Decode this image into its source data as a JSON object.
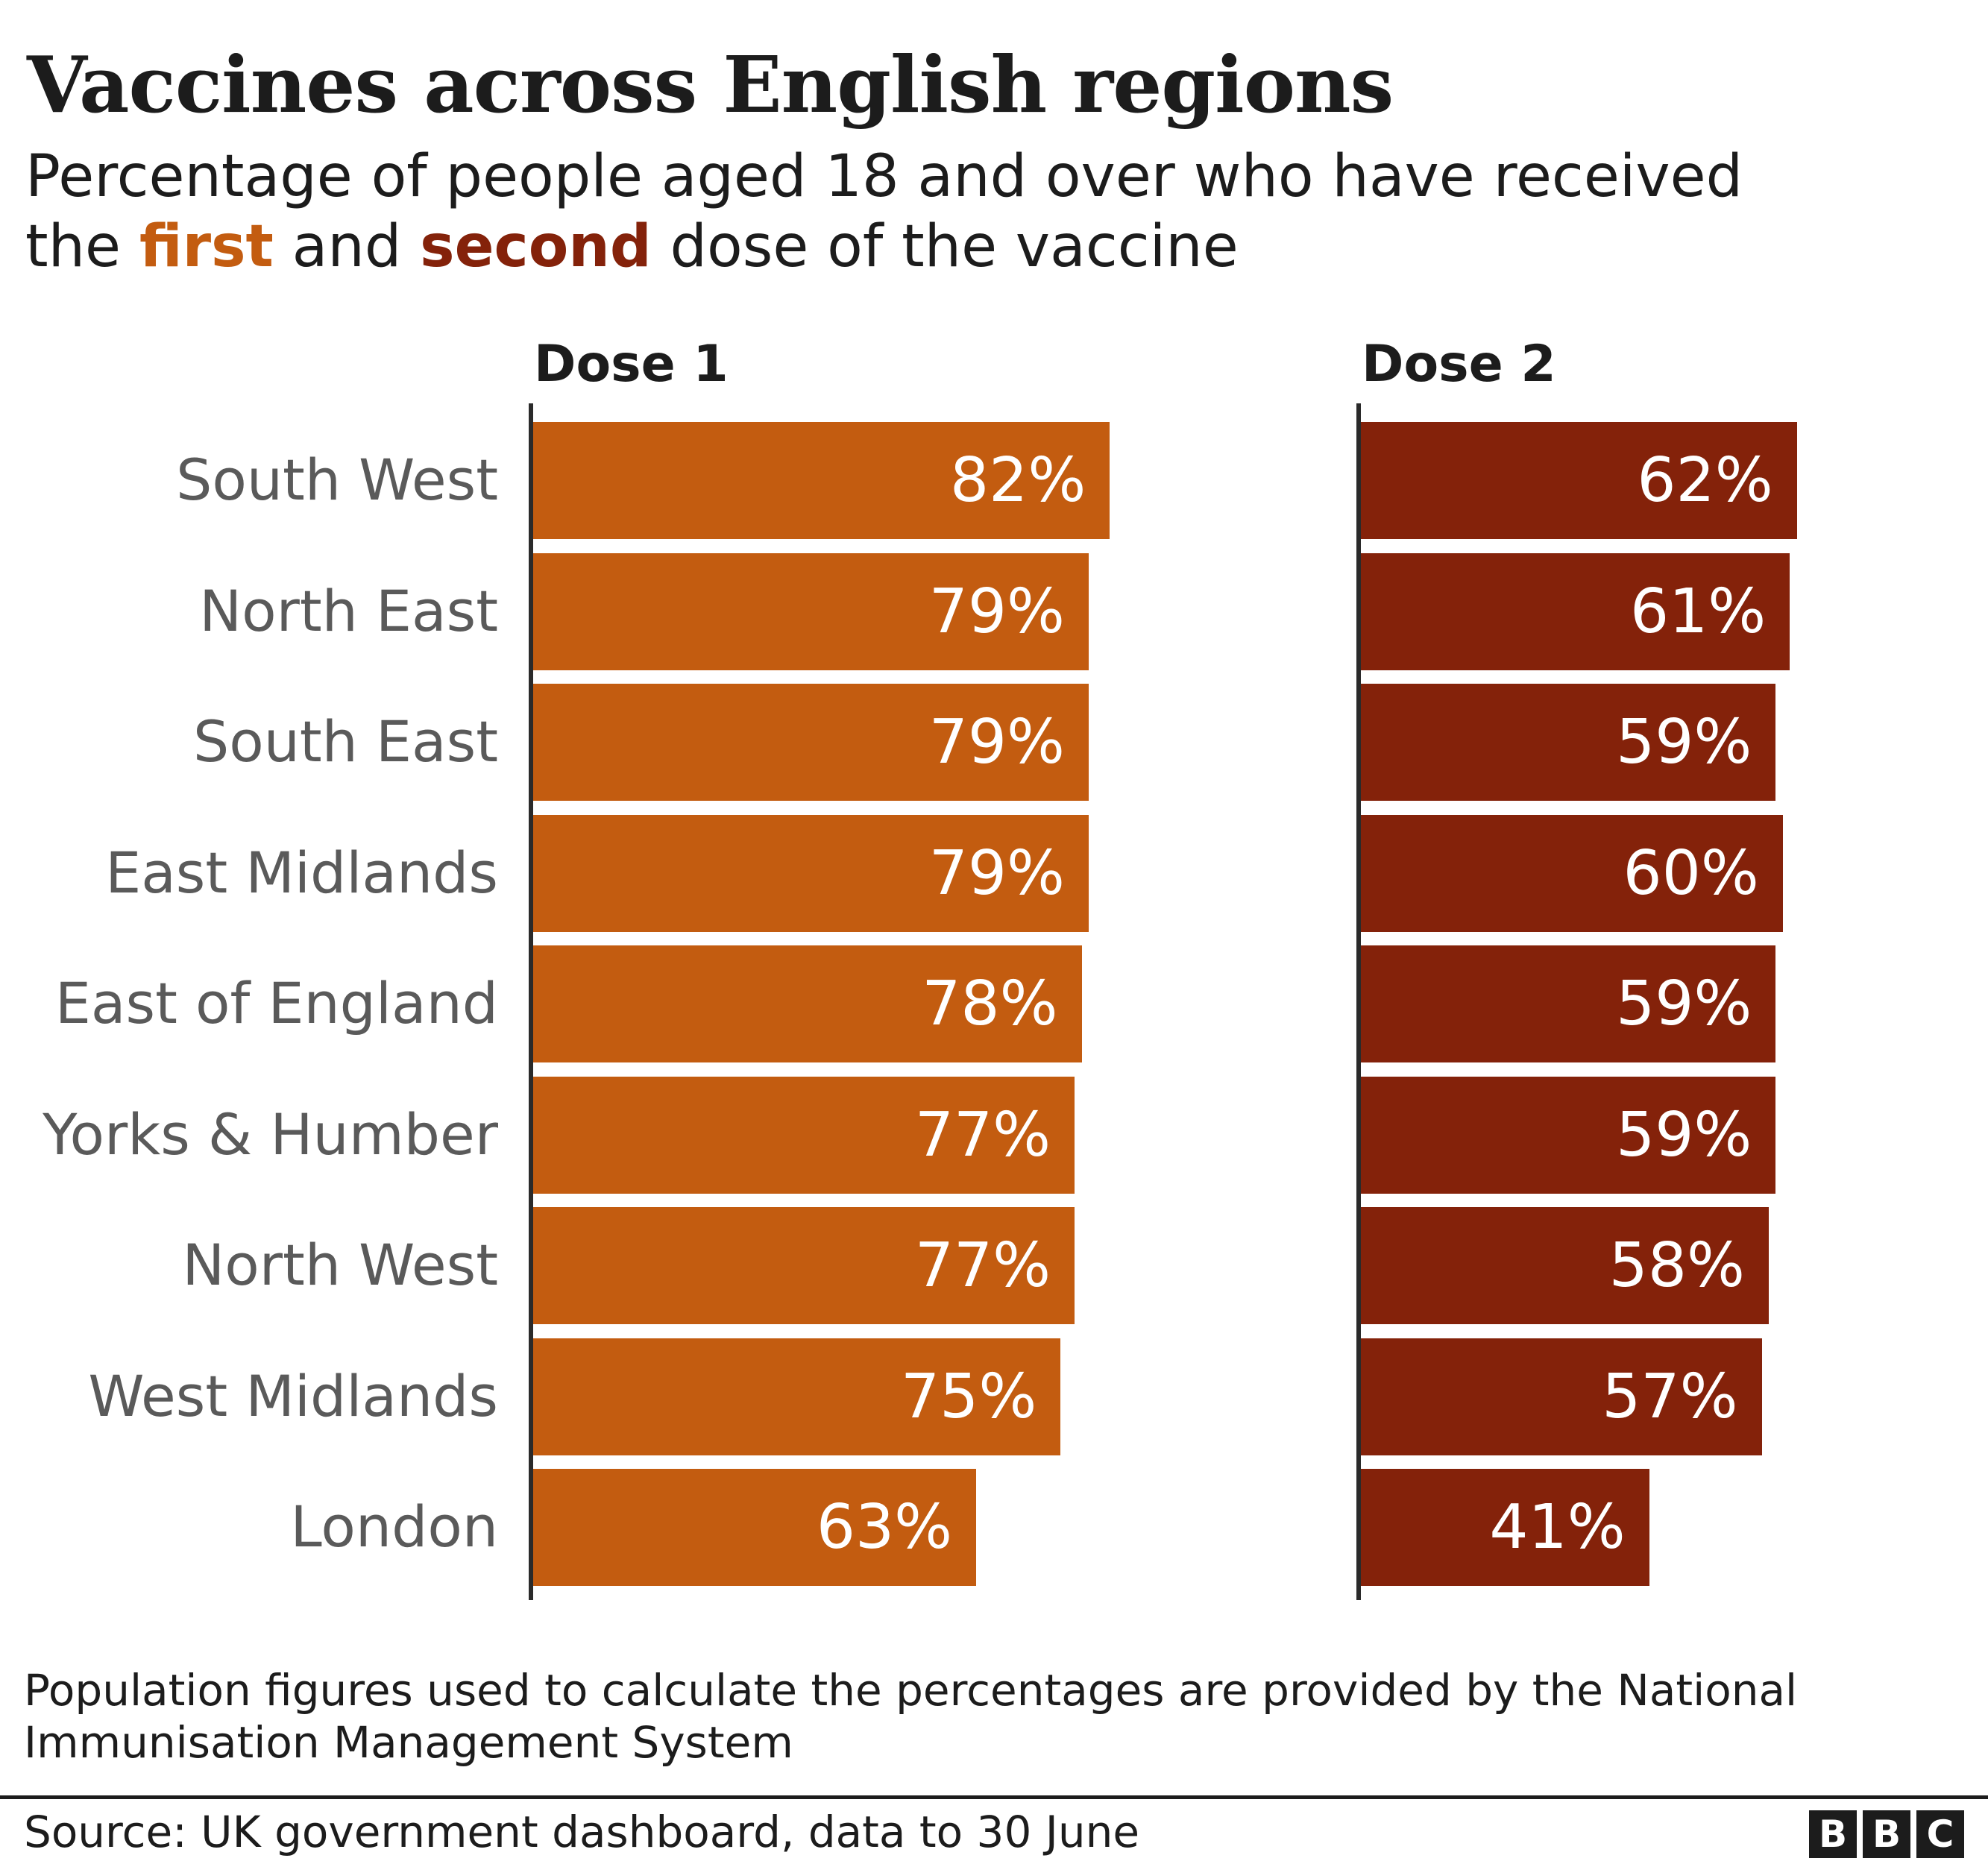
{
  "header": {
    "title": "Vaccines across English regions",
    "subtitle_line1": "Percentage of people aged 18 and over who have received",
    "subtitle_line2_prefix": "the ",
    "subtitle_first": "first",
    "subtitle_mid": " and ",
    "subtitle_second": "second",
    "subtitle_suffix": " dose of the vaccine"
  },
  "colors": {
    "dose1": "#c35c10",
    "dose2": "#84220a",
    "label": "#5a5a5a",
    "text": "#1c1c1c"
  },
  "panels": {
    "dose1_label": "Dose 1",
    "dose2_label": "Dose 2"
  },
  "chart_data": {
    "type": "bar",
    "orientation": "horizontal",
    "title": "Vaccines across English regions",
    "subtitle": "Percentage of people aged 18 and over who have received the first and second dose of the vaccine",
    "categories": [
      "South West",
      "North East",
      "South East",
      "East Midlands",
      "East of England",
      "Yorks & Humber",
      "North West",
      "West Midlands",
      "London"
    ],
    "series": [
      {
        "name": "Dose 1",
        "color": "#c35c10",
        "values": [
          82,
          79,
          79,
          79,
          78,
          77,
          77,
          75,
          63
        ]
      },
      {
        "name": "Dose 2",
        "color": "#84220a",
        "values": [
          62,
          61,
          59,
          60,
          59,
          59,
          58,
          57,
          41
        ]
      }
    ],
    "value_labels": {
      "dose1": [
        "82%",
        "79%",
        "79%",
        "79%",
        "78%",
        "77%",
        "77%",
        "75%",
        "63%"
      ],
      "dose2": [
        "62%",
        "61%",
        "59%",
        "60%",
        "59%",
        "59%",
        "58%",
        "57%",
        "41%"
      ]
    },
    "xlabel": "",
    "ylabel": "",
    "grid": false,
    "legend": "inline panel headers"
  },
  "footer": {
    "note": "Population figures used to calculate the percentages are provided by the National Immunisation Management System",
    "source": "Source: UK government dashboard, data to 30 June",
    "logo_letters": [
      "B",
      "B",
      "C"
    ]
  }
}
